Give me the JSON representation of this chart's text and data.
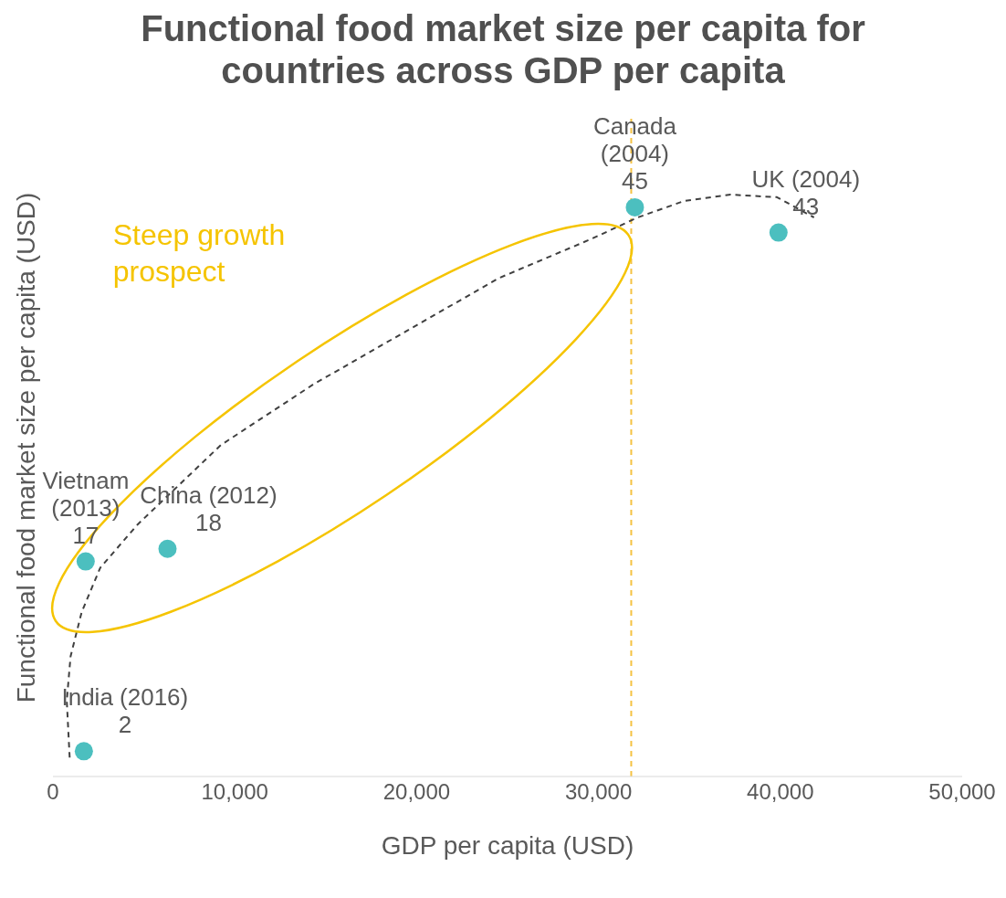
{
  "chart_data": {
    "type": "scatter",
    "title": "Functional food market size per capita for countries across GDP per capita",
    "xlabel": "GDP per capita (USD)",
    "ylabel": "Functional food market size per capita (USD)",
    "xlim": [
      0,
      50000
    ],
    "xticks": [
      {
        "value": 0,
        "label": "0"
      },
      {
        "value": 10000,
        "label": "10,000"
      },
      {
        "value": 20000,
        "label": "20,000"
      },
      {
        "value": 30000,
        "label": "30,000"
      },
      {
        "value": 40000,
        "label": "40,000"
      },
      {
        "value": 50000,
        "label": "50,000"
      }
    ],
    "ylim": [
      0,
      52
    ],
    "tick_labels": "x",
    "grid": false,
    "legend": false,
    "series": [
      {
        "color": "#4cbfbf",
        "marker": "circle",
        "x": [
          1700,
          1800,
          6300,
          32000,
          39900
        ],
        "values": [
          2,
          17,
          18,
          45,
          43
        ],
        "value_labels": [
          "2",
          "17",
          "18",
          "45",
          "43"
        ]
      },
      {
        "type": "line",
        "color": "#404040",
        "line_style": "dashed",
        "marker": "none",
        "x": [
          920,
          760,
          970,
          1580,
          2600,
          4640,
          9230,
          14320,
          19420,
          24520,
          29610,
          32160,
          34710,
          37260,
          39810,
          41850
        ],
        "values": [
          1.5,
          6.0,
          9.5,
          13.0,
          16.5,
          19.9,
          26.2,
          31.0,
          35.2,
          39.4,
          42.5,
          44.2,
          45.5,
          46.0,
          45.8,
          44.2
        ]
      }
    ],
    "ref_lines": [
      {
        "axis": "x",
        "value": 31800,
        "color": "#f5c242",
        "line_style": "dashed"
      }
    ],
    "annotations": [
      {
        "text": "India (2016)",
        "x": 1700,
        "y": 2
      },
      {
        "text": "Vietnam (2013)",
        "x": 1800,
        "y": 17
      },
      {
        "text": "China (2012)",
        "x": 6300,
        "y": 18
      },
      {
        "text": "Canada (2004)",
        "x": 32000,
        "y": 45
      },
      {
        "text": "UK (2004)",
        "x": 39900,
        "y": 43
      },
      "Steep growth prospect"
    ]
  }
}
